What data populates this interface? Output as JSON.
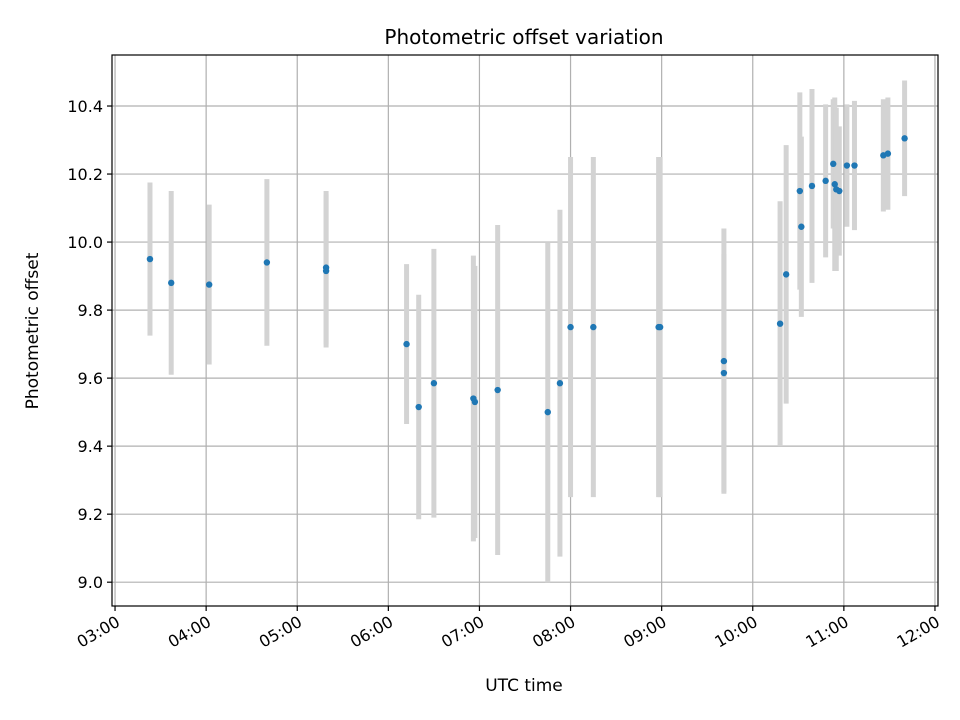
{
  "chart_data": {
    "type": "scatter",
    "title": "Photometric offset variation",
    "xlabel": "UTC time",
    "ylabel": "Photometric offset",
    "x_tick_labels": [
      "03:00",
      "04:00",
      "05:00",
      "06:00",
      "07:00",
      "08:00",
      "09:00",
      "10:00",
      "11:00",
      "12:00"
    ],
    "y_ticks": [
      9.0,
      9.2,
      9.4,
      9.6,
      9.8,
      10.0,
      10.2,
      10.4
    ],
    "y_tick_labels": [
      "9.0",
      "9.2",
      "9.4",
      "9.6",
      "9.8",
      "10.0",
      "10.2",
      "10.4"
    ],
    "xlim": [
      "02:58",
      "12:02"
    ],
    "ylim": [
      8.93,
      10.55
    ],
    "grid": true,
    "marker_color": "#1f77b4",
    "errorbar_color": "#d3d3d3",
    "points": [
      {
        "x": "03:23",
        "y": 9.95,
        "err": 0.225
      },
      {
        "x": "03:37",
        "y": 9.88,
        "err": 0.27
      },
      {
        "x": "04:02",
        "y": 9.875,
        "err": 0.235
      },
      {
        "x": "04:40",
        "y": 9.94,
        "err": 0.245
      },
      {
        "x": "05:19",
        "y": 9.915,
        "err": 0.225
      },
      {
        "x": "05:19",
        "y": 9.925,
        "err": 0.225
      },
      {
        "x": "06:12",
        "y": 9.7,
        "err": 0.235
      },
      {
        "x": "06:20",
        "y": 9.515,
        "err": 0.33
      },
      {
        "x": "06:30",
        "y": 9.585,
        "err": 0.395
      },
      {
        "x": "06:56",
        "y": 9.54,
        "err": 0.42
      },
      {
        "x": "06:57",
        "y": 9.53,
        "err": 0.4
      },
      {
        "x": "07:12",
        "y": 9.565,
        "err": 0.485
      },
      {
        "x": "07:45",
        "y": 9.5,
        "err": 0.5
      },
      {
        "x": "07:53",
        "y": 9.585,
        "err": 0.51
      },
      {
        "x": "08:00",
        "y": 9.75,
        "err": 0.5
      },
      {
        "x": "08:15",
        "y": 9.75,
        "err": 0.5
      },
      {
        "x": "08:58",
        "y": 9.75,
        "err": 0.5
      },
      {
        "x": "08:59",
        "y": 9.75,
        "err": 0.5
      },
      {
        "x": "09:41",
        "y": 9.65,
        "err": 0.39
      },
      {
        "x": "09:41",
        "y": 9.615,
        "err": 0.35
      },
      {
        "x": "10:18",
        "y": 9.76,
        "err": 0.36
      },
      {
        "x": "10:22",
        "y": 9.905,
        "err": 0.38
      },
      {
        "x": "10:31",
        "y": 10.15,
        "err": 0.29
      },
      {
        "x": "10:32",
        "y": 10.045,
        "err": 0.265
      },
      {
        "x": "10:39",
        "y": 10.165,
        "err": 0.285
      },
      {
        "x": "10:48",
        "y": 10.18,
        "err": 0.225
      },
      {
        "x": "10:53",
        "y": 10.23,
        "err": 0.19
      },
      {
        "x": "10:54",
        "y": 10.17,
        "err": 0.255
      },
      {
        "x": "10:55",
        "y": 10.155,
        "err": 0.24
      },
      {
        "x": "10:57",
        "y": 10.15,
        "err": 0.19
      },
      {
        "x": "11:02",
        "y": 10.225,
        "err": 0.18
      },
      {
        "x": "11:07",
        "y": 10.225,
        "err": 0.19
      },
      {
        "x": "11:26",
        "y": 10.255,
        "err": 0.165
      },
      {
        "x": "11:29",
        "y": 10.26,
        "err": 0.165
      },
      {
        "x": "11:40",
        "y": 10.305,
        "err": 0.17
      }
    ]
  }
}
